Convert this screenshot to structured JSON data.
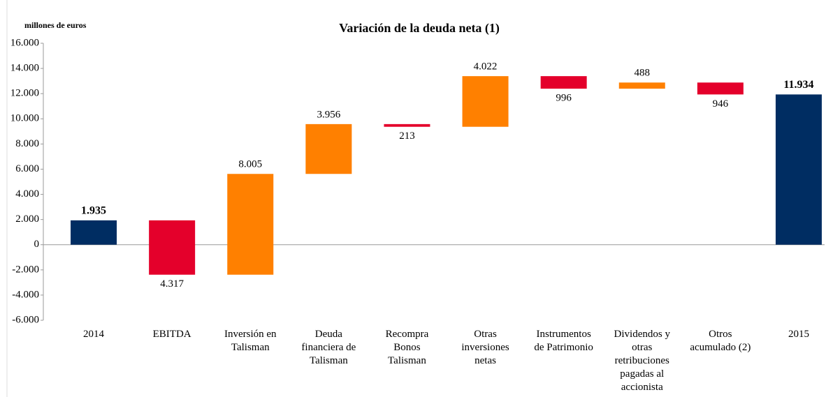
{
  "chart_data": {
    "type": "waterfall",
    "title": "Variación de la deuda neta (1)",
    "y_label": "millones de euros",
    "categories": [
      "2014",
      "EBITDA",
      "Inversión en\nTalisman",
      "Deuda\nfinanciera de\nTalisman",
      "Recompra\nBonos\nTalisman",
      "Otras\ninversiones\nnetas",
      "Instrumentos\nde Patrimonio",
      "Dividendos y\notras\nretribuciones\npagadas al\naccionista",
      "Otros\nacumulado (2)",
      "2015"
    ],
    "values": [
      1935,
      -4317,
      8005,
      3956,
      -213,
      4022,
      -996,
      488,
      -946,
      11934
    ],
    "value_labels": [
      "1.935",
      "4.317",
      "8.005",
      "3.956",
      "213",
      "4.022",
      "996",
      "488",
      "946",
      "11.934"
    ],
    "measure": [
      "total",
      "relative",
      "relative",
      "relative",
      "relative",
      "relative",
      "relative",
      "relative",
      "relative",
      "total"
    ],
    "colors": {
      "total": "#002d62",
      "increase": "#ff8000",
      "decrease": "#e4002b"
    },
    "ylim": [
      -6000,
      16000
    ],
    "yticks": [
      {
        "value": -6000,
        "label": "-6.000"
      },
      {
        "value": -4000,
        "label": "-4.000"
      },
      {
        "value": -2000,
        "label": "-2.000"
      },
      0,
      {
        "value": 2000,
        "label": "2.000"
      },
      {
        "value": 4000,
        "label": "4.000"
      },
      {
        "value": 6000,
        "label": "6.000"
      },
      {
        "value": 8000,
        "label": "8.000"
      },
      {
        "value": 10000,
        "label": "10.000"
      },
      {
        "value": 12000,
        "label": "12.000"
      },
      {
        "value": 14000,
        "label": "14.000"
      },
      {
        "value": 16000,
        "label": "16.000"
      }
    ]
  }
}
